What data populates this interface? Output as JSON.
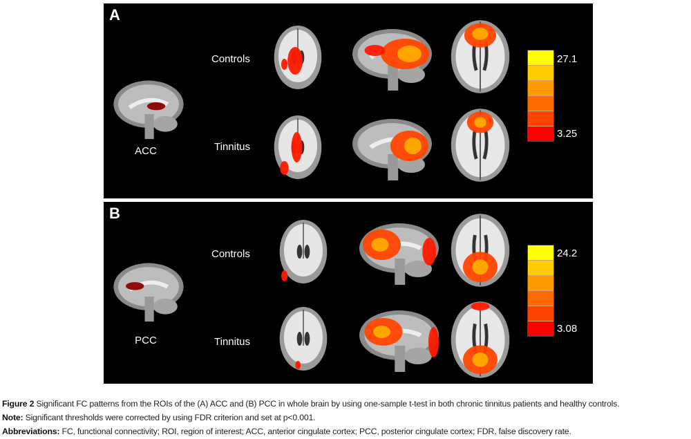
{
  "panels": [
    {
      "label": "A",
      "roi": "ACC",
      "rows": [
        "Controls",
        "Tinnitus"
      ],
      "colorbar": {
        "max": "27.1",
        "min": "3.25"
      }
    },
    {
      "label": "B",
      "roi": "PCC",
      "rows": [
        "Controls",
        "Tinnitus"
      ],
      "colorbar": {
        "max": "24.2",
        "min": "3.08"
      }
    }
  ],
  "colorbar_colors": [
    "#ffff00",
    "#ffcc00",
    "#ff9900",
    "#ff6a00",
    "#ff4400",
    "#ff0000"
  ],
  "caption": {
    "figure_label": "Figure 2",
    "figure_text": " Significant FC patterns from the ROIs of the (A) ACC and (B) PCC in whole brain by using one-sample t-test in both chronic tinnitus patients and healthy controls.",
    "note_label": "Note:",
    "note_text": " Significant thresholds were corrected by using FDR criterion and set at p<0.001.",
    "abbr_label": "Abbreviations:",
    "abbr_text": " FC, functional connectivity; ROI, region of interest; ACC, anterior cingulate cortex; PCC, posterior cingulate cortex; FDR, false discovery rate."
  }
}
